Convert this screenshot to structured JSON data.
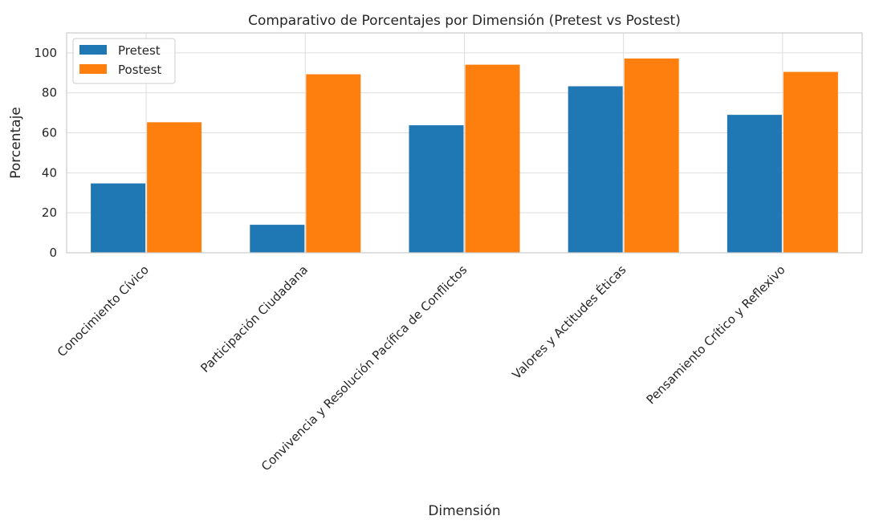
{
  "chart_data": {
    "type": "bar",
    "title": "Comparativo de Porcentajes por Dimensión (Pretest vs Postest)",
    "xlabel": "Dimensión",
    "ylabel": "Porcentaje",
    "categories": [
      "Conocimiento Cívico",
      "Participación Ciudadana",
      "Convivencia y Resolución Pacífica de Conflictos",
      "Valores y Actitudes Éticas",
      "Pensamiento Crítico y Reflexivo"
    ],
    "series": [
      {
        "name": "Pretest",
        "color": "#1f77b4",
        "values": [
          34.7,
          14.0,
          63.8,
          83.3,
          69.0
        ]
      },
      {
        "name": "Postest",
        "color": "#ff7f0e",
        "values": [
          65.3,
          89.3,
          94.1,
          97.2,
          90.5
        ]
      }
    ],
    "ylim": [
      0,
      110
    ],
    "yticks": [
      0,
      20,
      40,
      60,
      80,
      100
    ],
    "grid": true,
    "legend_position": "top-left"
  }
}
